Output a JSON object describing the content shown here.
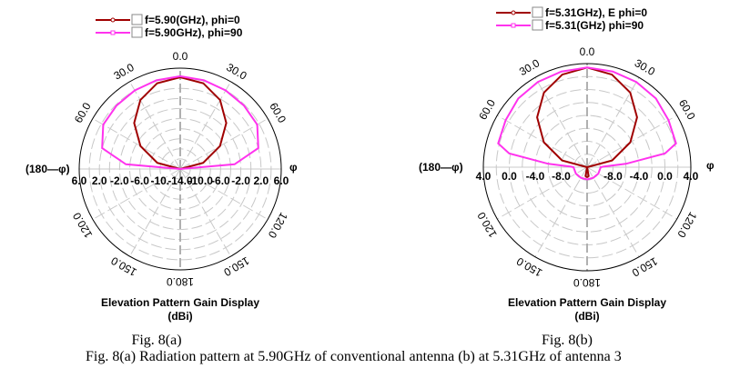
{
  "charts_meta": {
    "left_axis_label": "(180—φ)",
    "right_axis_label": "φ"
  },
  "chart_data": [
    {
      "type": "polar-line",
      "title": "Elevation Pattern Gain Display",
      "unit": "(dBi)",
      "sublabel": "Fig. 8(a)",
      "rlim": [
        -14,
        6
      ],
      "grid": true,
      "legend_position": "top",
      "angle_labels": [
        {
          "angle": 0,
          "text": "0.0"
        },
        {
          "angle": -30,
          "text": "30.0"
        },
        {
          "angle": 30,
          "text": "30.0"
        },
        {
          "angle": -60,
          "text": "60.0"
        },
        {
          "angle": 60,
          "text": "60.0"
        },
        {
          "angle": -120,
          "text": "120.0"
        },
        {
          "angle": 120,
          "text": "120.0"
        },
        {
          "angle": -150,
          "text": "150.0"
        },
        {
          "angle": 150,
          "text": "150.0"
        },
        {
          "angle": 180,
          "text": "180.0"
        }
      ],
      "r_tick_labels_left": [
        "6.0",
        "2.0",
        "-2.0",
        "-6.0",
        "-10.",
        "-14.0"
      ],
      "r_tick_labels_right": [
        "-10.0",
        "-6.0",
        "-2.0",
        "2.0",
        "6.0"
      ],
      "series": [
        {
          "name": "f=5.90(GHz), phi=0",
          "color": "#a00000",
          "marker": "circle",
          "angles": [
            -180,
            -150,
            -120,
            -90,
            -75,
            -60,
            -45,
            -30,
            -15,
            0,
            15,
            30,
            45,
            60,
            75,
            90,
            120,
            150,
            180
          ],
          "values": [
            -14,
            -14,
            -14,
            -14,
            -9.3,
            -4.9,
            -1.1,
            1.8,
            3.6,
            4.2,
            3.6,
            1.8,
            -1.1,
            -4.9,
            -9.3,
            -14,
            -14,
            -14,
            -14
          ]
        },
        {
          "name": "f=5.90GHz), phi=90",
          "color": "#ff33ee",
          "marker": "square",
          "angles": [
            -180,
            -90,
            -85,
            -75,
            -60,
            -45,
            -30,
            -15,
            0,
            15,
            30,
            45,
            60,
            75,
            85,
            90,
            180
          ],
          "values": [
            -14,
            -14,
            -3.2,
            2.0,
            3.6,
            3.8,
            4.0,
            4.2,
            4.4,
            4.2,
            4.0,
            3.8,
            3.6,
            2.0,
            -3.2,
            -14,
            -14
          ]
        }
      ]
    },
    {
      "type": "polar-line",
      "title": "Elevation Pattern Gain Display",
      "unit": "(dBi)",
      "sublabel": "Fig. 8(b)",
      "rlim": [
        -12,
        4
      ],
      "grid": true,
      "legend_position": "top",
      "angle_labels": [
        {
          "angle": 0,
          "text": "0.0"
        },
        {
          "angle": -30,
          "text": "30.0"
        },
        {
          "angle": 30,
          "text": "30.0"
        },
        {
          "angle": -60,
          "text": "60.0"
        },
        {
          "angle": 60,
          "text": "60.0"
        },
        {
          "angle": -120,
          "text": "120.0"
        },
        {
          "angle": 120,
          "text": "120.0"
        },
        {
          "angle": -150,
          "text": "150.0"
        },
        {
          "angle": 150,
          "text": "150.0"
        },
        {
          "angle": 180,
          "text": "180.0"
        }
      ],
      "r_tick_labels_left": [
        "4.0",
        "0.0",
        "-4.0",
        "-8.0"
      ],
      "r_tick_labels_right": [
        "-8.0",
        "-4.0",
        "0.0",
        "4.0"
      ],
      "series": [
        {
          "name": "f=5.31GHz), E phi=0",
          "color": "#a00000",
          "marker": "circle",
          "angles": [
            -180,
            -170,
            -160,
            -120,
            -90,
            -75,
            -60,
            -45,
            -30,
            -15,
            0,
            15,
            30,
            45,
            60,
            75,
            90,
            120,
            160,
            170,
            180
          ],
          "values": [
            -10.4,
            -10.6,
            -12,
            -12,
            -12,
            -8.0,
            -4.3,
            -1.1,
            1.3,
            2.8,
            3.4,
            2.8,
            1.3,
            -1.1,
            -4.3,
            -8.0,
            -12,
            -12,
            -12,
            -10.6,
            -10.4
          ]
        },
        {
          "name": "f=5.31(GHz) phi=90",
          "color": "#ff33ee",
          "marker": "square",
          "angles": [
            -180,
            -150,
            -120,
            -100,
            -90,
            -88,
            -85,
            -80,
            -75,
            -60,
            -45,
            -30,
            -15,
            0,
            15,
            30,
            45,
            60,
            75,
            80,
            85,
            88,
            90,
            100,
            120,
            150,
            180
          ],
          "values": [
            -10.1,
            -10.1,
            -10.0,
            -10.0,
            -9.9,
            -9.5,
            -6,
            0.2,
            2.2,
            2.5,
            3.0,
            3.2,
            3.3,
            3.4,
            3.3,
            3.2,
            3.0,
            2.5,
            2.2,
            0.2,
            -6,
            -9.5,
            -9.9,
            -10.0,
            -10.0,
            -10.1,
            -10.1
          ]
        }
      ]
    }
  ],
  "caption": "Fig. 8(a) Radiation pattern at 5.90GHz of conventional antenna (b) at 5.31GHz of antenna 3"
}
